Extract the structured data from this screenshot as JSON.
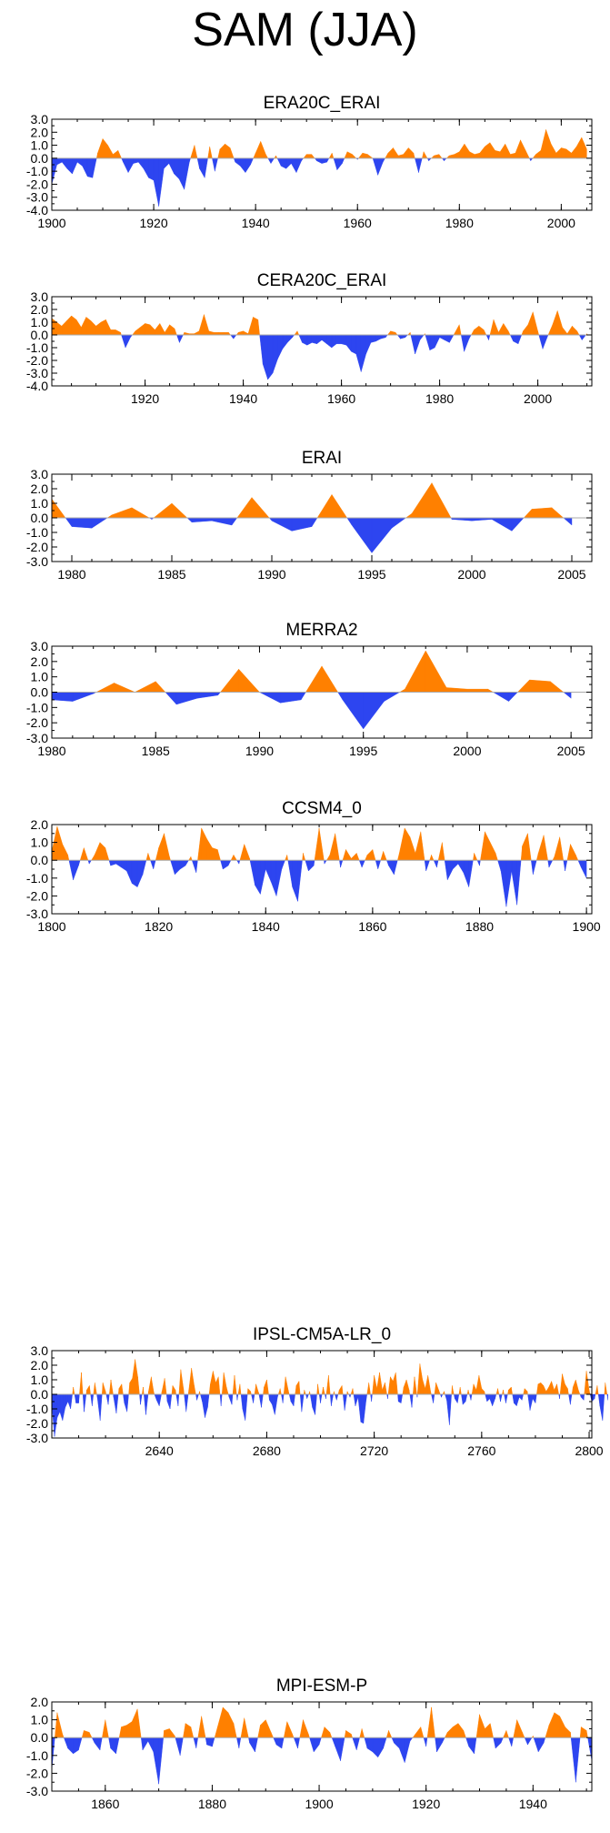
{
  "title": "SAM (JJA)",
  "colors": {
    "positive": "#ff8000",
    "negative": "#2d45f0",
    "zero_line": "#aaaaaa",
    "axis": "#000000"
  },
  "chart_data": [
    {
      "type": "area",
      "title": "ERA20C_ERAI",
      "xlim": [
        1900,
        2006
      ],
      "ylim": [
        -4,
        3
      ],
      "xticks": [
        1900,
        1920,
        1940,
        1960,
        1980,
        2000
      ],
      "xtick_labels": [
        "1900",
        "1920",
        "1940",
        "1960",
        "1980",
        "2000"
      ],
      "yticks": [
        3,
        2,
        1,
        0,
        -1,
        -2,
        -3,
        -4
      ],
      "ytick_labels": [
        "3.0",
        "2.0",
        "1.0",
        "0.0",
        "-1.0",
        "-2.0",
        "-3.0",
        "-4.0"
      ],
      "x_start": 1900,
      "values": [
        -2.0,
        -0.5,
        -0.3,
        -0.8,
        -1.2,
        -0.3,
        -0.6,
        -1.4,
        -1.5,
        0.4,
        1.5,
        1.0,
        0.3,
        0.6,
        -0.3,
        -1.1,
        -0.4,
        -0.3,
        -0.8,
        -1.5,
        -1.7,
        -3.7,
        -0.8,
        -0.4,
        -1.2,
        -1.6,
        -2.4,
        -0.3,
        1.0,
        -0.8,
        -1.5,
        0.9,
        -1.0,
        0.7,
        1.1,
        0.8,
        -0.3,
        -0.6,
        -1.1,
        -0.5,
        0.4,
        1.3,
        0.3,
        -0.4,
        0.2,
        -0.6,
        -0.8,
        -0.4,
        -1.1,
        -0.2,
        0.3,
        0.3,
        -0.2,
        -0.4,
        -0.3,
        0.4,
        -0.9,
        -0.4,
        0.5,
        0.3,
        -0.1,
        0.4,
        0.3,
        0.0,
        -1.3,
        -0.3,
        0.4,
        0.8,
        0.2,
        0.3,
        0.8,
        0.4,
        -1.1,
        0.5,
        -0.2,
        0.2,
        0.3,
        -0.2,
        0.2,
        0.3,
        0.5,
        1.1,
        0.5,
        0.3,
        0.4,
        0.9,
        1.2,
        0.6,
        0.5,
        1.1,
        0.3,
        0.4,
        1.4,
        0.6,
        -0.2,
        0.3,
        0.6,
        2.2,
        1.1,
        0.4,
        0.8,
        0.7,
        0.4,
        0.9,
        1.6,
        0.7
      ]
    },
    {
      "type": "area",
      "title": "CERA20C_ERAI",
      "xlim": [
        1901,
        2011
      ],
      "ylim": [
        -4,
        3
      ],
      "xticks": [
        1920,
        1940,
        1960,
        1980,
        2000
      ],
      "xtick_labels": [
        "1920",
        "1940",
        "1960",
        "1980",
        "2000"
      ],
      "yticks": [
        3,
        2,
        1,
        0,
        -1,
        -2,
        -3,
        -4
      ],
      "ytick_labels": [
        "3.0",
        "2.0",
        "1.0",
        "0.0",
        "-1.0",
        "-2.0",
        "-3.0",
        "-4.0"
      ],
      "x_start": 1901,
      "values": [
        1.3,
        1.0,
        0.7,
        1.1,
        1.5,
        1.2,
        0.6,
        1.4,
        1.1,
        0.7,
        1.0,
        1.2,
        0.4,
        0.4,
        0.2,
        -1.0,
        -0.2,
        0.3,
        0.6,
        0.9,
        0.8,
        0.4,
        0.9,
        0.2,
        0.8,
        0.5,
        -0.6,
        0.2,
        0.1,
        0.1,
        0.3,
        1.6,
        0.3,
        0.2,
        0.2,
        0.2,
        0.2,
        -0.3,
        0.2,
        0.3,
        0.1,
        1.4,
        1.2,
        -2.3,
        -3.5,
        -3.0,
        -1.9,
        -1.1,
        -0.6,
        -0.2,
        0.3,
        -0.6,
        -0.8,
        -0.6,
        -0.7,
        -0.4,
        -0.7,
        -1.0,
        -0.7,
        -0.7,
        -0.8,
        -1.3,
        -1.5,
        -2.9,
        -1.5,
        -0.6,
        -0.5,
        -0.3,
        -0.2,
        0.3,
        0.2,
        -0.3,
        -0.2,
        0.2,
        -1.5,
        -0.4,
        0.1,
        -1.2,
        -1.0,
        -0.2,
        -0.4,
        -0.6,
        0.1,
        0.8,
        -1.3,
        -0.3,
        0.4,
        0.7,
        0.4,
        -0.4,
        1.2,
        0.2,
        0.9,
        0.3,
        -0.5,
        -0.7,
        0.3,
        0.8,
        1.8,
        0.3,
        -1.1,
        -0.1,
        0.8,
        1.9,
        0.6,
        0.1,
        0.7,
        0.3,
        -0.4,
        0.1
      ]
    },
    {
      "type": "area",
      "title": "ERAI",
      "xlim": [
        1979,
        2006
      ],
      "ylim": [
        -3,
        3
      ],
      "xticks": [
        1980,
        1985,
        1990,
        1995,
        2000,
        2005
      ],
      "xtick_labels": [
        "1980",
        "1985",
        "1990",
        "1995",
        "2000",
        "2005"
      ],
      "yticks": [
        3,
        2,
        1,
        0,
        -1,
        -2,
        -3
      ],
      "ytick_labels": [
        "3.0",
        "2.0",
        "1.0",
        "0.0",
        "-1.0",
        "-2.0",
        "-3.0"
      ],
      "x_start": 1979,
      "values": [
        1.3,
        -0.6,
        -0.7,
        0.2,
        0.7,
        -0.1,
        1.0,
        -0.3,
        -0.2,
        -0.5,
        1.4,
        -0.2,
        -0.9,
        -0.6,
        1.6,
        -0.5,
        -2.4,
        -0.7,
        0.3,
        2.4,
        -0.1,
        -0.2,
        -0.1,
        -0.9,
        0.6,
        0.7,
        -0.5
      ]
    },
    {
      "type": "area",
      "title": "MERRA2",
      "xlim": [
        1980,
        2006
      ],
      "ylim": [
        -3,
        3
      ],
      "xticks": [
        1980,
        1985,
        1990,
        1995,
        2000,
        2005
      ],
      "xtick_labels": [
        "1980",
        "1985",
        "1990",
        "1995",
        "2000",
        "2005"
      ],
      "yticks": [
        3,
        2,
        1,
        0,
        -1,
        -2,
        -3
      ],
      "ytick_labels": [
        "3.0",
        "2.0",
        "1.0",
        "0.0",
        "-1.0",
        "-2.0",
        "-3.0"
      ],
      "x_start": 1980,
      "values": [
        -0.5,
        -0.6,
        -0.1,
        0.6,
        0.0,
        0.7,
        -0.8,
        -0.4,
        -0.2,
        1.5,
        0.0,
        -0.7,
        -0.5,
        1.7,
        -0.5,
        -2.4,
        -0.6,
        0.2,
        2.7,
        0.3,
        0.2,
        0.2,
        -0.6,
        0.8,
        0.7,
        -0.4
      ]
    },
    {
      "type": "area",
      "title": "CCSM4_0",
      "xlim": [
        1800,
        1901
      ],
      "ylim": [
        -3,
        2
      ],
      "xticks": [
        1800,
        1820,
        1840,
        1860,
        1880,
        1900
      ],
      "xtick_labels": [
        "1800",
        "1820",
        "1840",
        "1860",
        "1880",
        "1900"
      ],
      "yticks": [
        2,
        1,
        0,
        -1,
        -2,
        -3
      ],
      "ytick_labels": [
        "2.0",
        "1.0",
        "0.0",
        "-1.0",
        "-2.0",
        "-3.0"
      ],
      "x_start": 1800,
      "values": [
        0.5,
        1.9,
        0.9,
        0.3,
        -1.1,
        -0.3,
        0.7,
        -0.2,
        0.3,
        1.0,
        0.7,
        -0.3,
        -0.2,
        -0.4,
        -0.6,
        -1.3,
        -1.5,
        -0.8,
        0.4,
        -0.5,
        0.7,
        1.5,
        0.2,
        -0.8,
        -0.5,
        -0.3,
        0.2,
        -0.7,
        1.8,
        1.2,
        0.7,
        0.6,
        -0.5,
        -0.3,
        0.3,
        -0.2,
        0.9,
        0.1,
        -1.4,
        -1.9,
        -0.5,
        -1.2,
        -2.0,
        -0.5,
        0.3,
        -1.5,
        -2.3,
        0.4,
        -0.6,
        -0.3,
        1.8,
        -0.2,
        0.3,
        1.5,
        -0.4,
        0.6,
        0.1,
        0.4,
        -0.4,
        0.3,
        0.6,
        -0.5,
        0.5,
        -0.3,
        -0.8,
        0.4,
        1.8,
        1.3,
        0.4,
        1.6,
        -0.6,
        0.3,
        -0.4,
        1.0,
        -1.1,
        -0.5,
        -0.2,
        -0.7,
        -1.5,
        0.4,
        -0.3,
        1.6,
        1.0,
        0.4,
        -0.6,
        -2.6,
        -0.6,
        -2.5,
        0.8,
        1.5,
        -0.8,
        0.4,
        1.4,
        -0.4,
        0.2,
        1.3,
        -0.6,
        0.9,
        0.3,
        -0.4,
        -1.0
      ]
    },
    {
      "type": "area",
      "title": "IPSL-CM5A-LR_0",
      "xlim": [
        2600,
        2801
      ],
      "ylim": [
        -3,
        3
      ],
      "xticks": [
        2640,
        2680,
        2720,
        2760,
        2800
      ],
      "xtick_labels": [
        "2640",
        "2680",
        "2720",
        "2760",
        "2800"
      ],
      "yticks": [
        3,
        2,
        1,
        0,
        -1,
        -2,
        -3
      ],
      "ytick_labels": [
        "3.0",
        "2.0",
        "1.0",
        "0.0",
        "-1.0",
        "-2.0",
        "-3.0"
      ],
      "x_start": 2600,
      "values": [
        -0.7,
        -2.9,
        -1.6,
        -1.2,
        -1.8,
        -0.9,
        -0.5,
        -1.0,
        0.5,
        -0.6,
        -0.6,
        1.5,
        -1.2,
        0.3,
        0.6,
        -0.8,
        0.8,
        -0.3,
        -1.8,
        0.8,
        0.2,
        -0.7,
        1.0,
        -0.2,
        -1.3,
        0.4,
        0.7,
        -0.6,
        -1.2,
        0.8,
        1.1,
        2.4,
        1.2,
        -0.7,
        0.5,
        -1.4,
        0.2,
        1.2,
        0.1,
        -0.4,
        -0.8,
        0.2,
        1.1,
        -0.5,
        -1.0,
        0.6,
        0.3,
        -0.8,
        1.7,
        0.4,
        -1.2,
        0.3,
        1.8,
        0.6,
        -0.4,
        0.2,
        -0.5,
        -1.6,
        -0.9,
        0.7,
        1.6,
        0.8,
        1.2,
        -0.8,
        1.5,
        0.5,
        -0.2,
        -0.7,
        1.3,
        -0.4,
        0.7,
        -1.0,
        -1.8,
        0.4,
        0.2,
        -0.6,
        0.7,
        0.1,
        -0.9,
        0.5,
        1.0,
        -0.4,
        -0.7,
        -1.4,
        -0.2,
        0.4,
        -0.6,
        1.2,
        0.3,
        -0.5,
        -0.8,
        0.6,
        0.9,
        -1.2,
        0.3,
        -0.3,
        0.2,
        -0.9,
        -1.4,
        0.7,
        -0.6,
        0.5,
        -0.3,
        1.3,
        -0.8,
        0.2,
        -0.4,
        0.3,
        0.6,
        -1.1,
        0.2,
        -0.2,
        0.4,
        -0.8,
        -0.2,
        -1.9,
        -2.0,
        -0.4,
        0.8,
        -0.5,
        1.3,
        0.4,
        1.5,
        0.3,
        0.8,
        -0.3,
        1.2,
        0.9,
        1.5,
        -0.5,
        -0.6,
        0.5,
        1.0,
        0.3,
        -0.9,
        1.2,
        -0.2,
        2.1,
        1.0,
        0.4,
        1.3,
        0.2,
        -0.6,
        0.8,
        0.3,
        -0.2,
        0.2,
        -0.4,
        -2.1,
        0.6,
        -0.3,
        -0.6,
        0.5,
        -0.7,
        -0.5,
        0.3,
        -0.4,
        0.7,
        0.3,
        1.3,
        0.4,
        0.2,
        -0.5,
        -0.3,
        -0.8,
        -0.3,
        0.4,
        -0.5,
        0.3,
        -0.6,
        0.3,
        0.5,
        -0.6,
        -0.8,
        -0.2,
        -0.4,
        0.4,
        0.2,
        -1.1,
        -0.3,
        -0.6,
        0.7,
        0.8,
        0.6,
        0.2,
        0.5,
        0.9,
        0.3,
        0.7,
        -0.3,
        1.4,
        0.7,
        0.4,
        -0.7,
        0.5,
        1.0,
        0.3,
        -0.2,
        -0.4,
        1.6,
        0.3,
        -0.5,
        -0.3,
        0.6,
        -0.8,
        -1.8,
        0.8,
        -0.4
      ]
    },
    {
      "type": "area",
      "title": "MPI-ESM-P",
      "xlim": [
        1850,
        1951
      ],
      "ylim": [
        -3,
        2
      ],
      "xticks": [
        1860,
        1880,
        1900,
        1920,
        1940
      ],
      "xtick_labels": [
        "1860",
        "1880",
        "1900",
        "1920",
        "1940"
      ],
      "yticks": [
        2,
        1,
        0,
        -1,
        -2,
        -3
      ],
      "ytick_labels": [
        "2.0",
        "1.0",
        "0.0",
        "-1.0",
        "-2.0",
        "-3.0"
      ],
      "x_start": 1850,
      "values": [
        -1.8,
        1.4,
        0.2,
        -0.6,
        -0.9,
        -0.7,
        0.4,
        0.3,
        -0.3,
        -0.7,
        1.0,
        -0.6,
        -0.9,
        0.6,
        0.7,
        0.9,
        1.6,
        -0.7,
        -0.2,
        -0.8,
        -2.6,
        0.4,
        0.5,
        0.1,
        -1.0,
        0.8,
        0.6,
        -0.6,
        1.2,
        -0.4,
        -0.5,
        0.6,
        1.7,
        1.4,
        0.8,
        -0.6,
        1.1,
        -0.3,
        -0.8,
        0.7,
        1.0,
        0.3,
        -0.4,
        -0.6,
        0.9,
        0.2,
        -0.6,
        1.0,
        0.2,
        -0.8,
        -0.4,
        0.6,
        0.3,
        -0.5,
        -1.3,
        0.4,
        0.2,
        -0.7,
        0.5,
        -0.6,
        -0.8,
        -1.1,
        -0.6,
        0.4,
        -0.3,
        -0.6,
        -1.4,
        -0.2,
        0.2,
        0.6,
        -0.5,
        1.7,
        -0.8,
        -0.3,
        0.3,
        0.6,
        0.8,
        0.4,
        -0.5,
        -0.9,
        1.3,
        0.5,
        0.8,
        -0.6,
        -0.3,
        0.4,
        -0.5,
        1.0,
        0.3,
        -0.4,
        0.1,
        -0.8,
        -0.3,
        0.7,
        1.4,
        1.2,
        0.6,
        0.3,
        -2.5,
        0.6,
        0.4,
        -1.3
      ]
    }
  ]
}
